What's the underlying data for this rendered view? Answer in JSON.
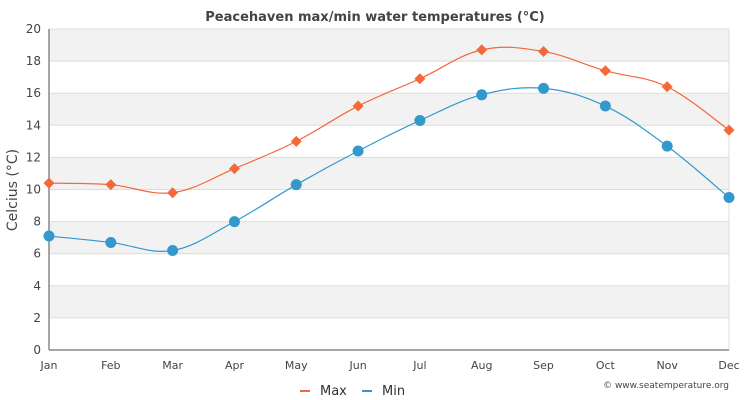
{
  "chart_data": {
    "type": "line",
    "title": "Peacehaven max/min water temperatures (°C)",
    "xlabel": "",
    "ylabel": "Celcius (°C)",
    "categories": [
      "Jan",
      "Feb",
      "Mar",
      "Apr",
      "May",
      "Jun",
      "Jul",
      "Aug",
      "Sep",
      "Oct",
      "Nov",
      "Dec"
    ],
    "ylim": [
      0,
      20
    ],
    "yticks": [
      0,
      2,
      4,
      6,
      8,
      10,
      12,
      14,
      16,
      18,
      20
    ],
    "grid": true,
    "legend_position": "bottom-center",
    "series": [
      {
        "name": "Max",
        "color": "#f4683a",
        "marker": "diamond",
        "values": [
          10.4,
          10.3,
          9.8,
          11.3,
          13.0,
          15.2,
          16.9,
          18.7,
          18.6,
          17.4,
          16.4,
          13.7
        ]
      },
      {
        "name": "Min",
        "color": "#3399cc",
        "marker": "circle",
        "values": [
          7.1,
          6.7,
          6.2,
          8.0,
          10.3,
          12.4,
          14.3,
          15.9,
          16.3,
          15.2,
          12.7,
          9.5
        ]
      }
    ],
    "credit": "© www.seatemperature.org"
  },
  "colors": {
    "band": "#f2f2f2",
    "grid": "#dddddd",
    "axis": "#888888"
  }
}
